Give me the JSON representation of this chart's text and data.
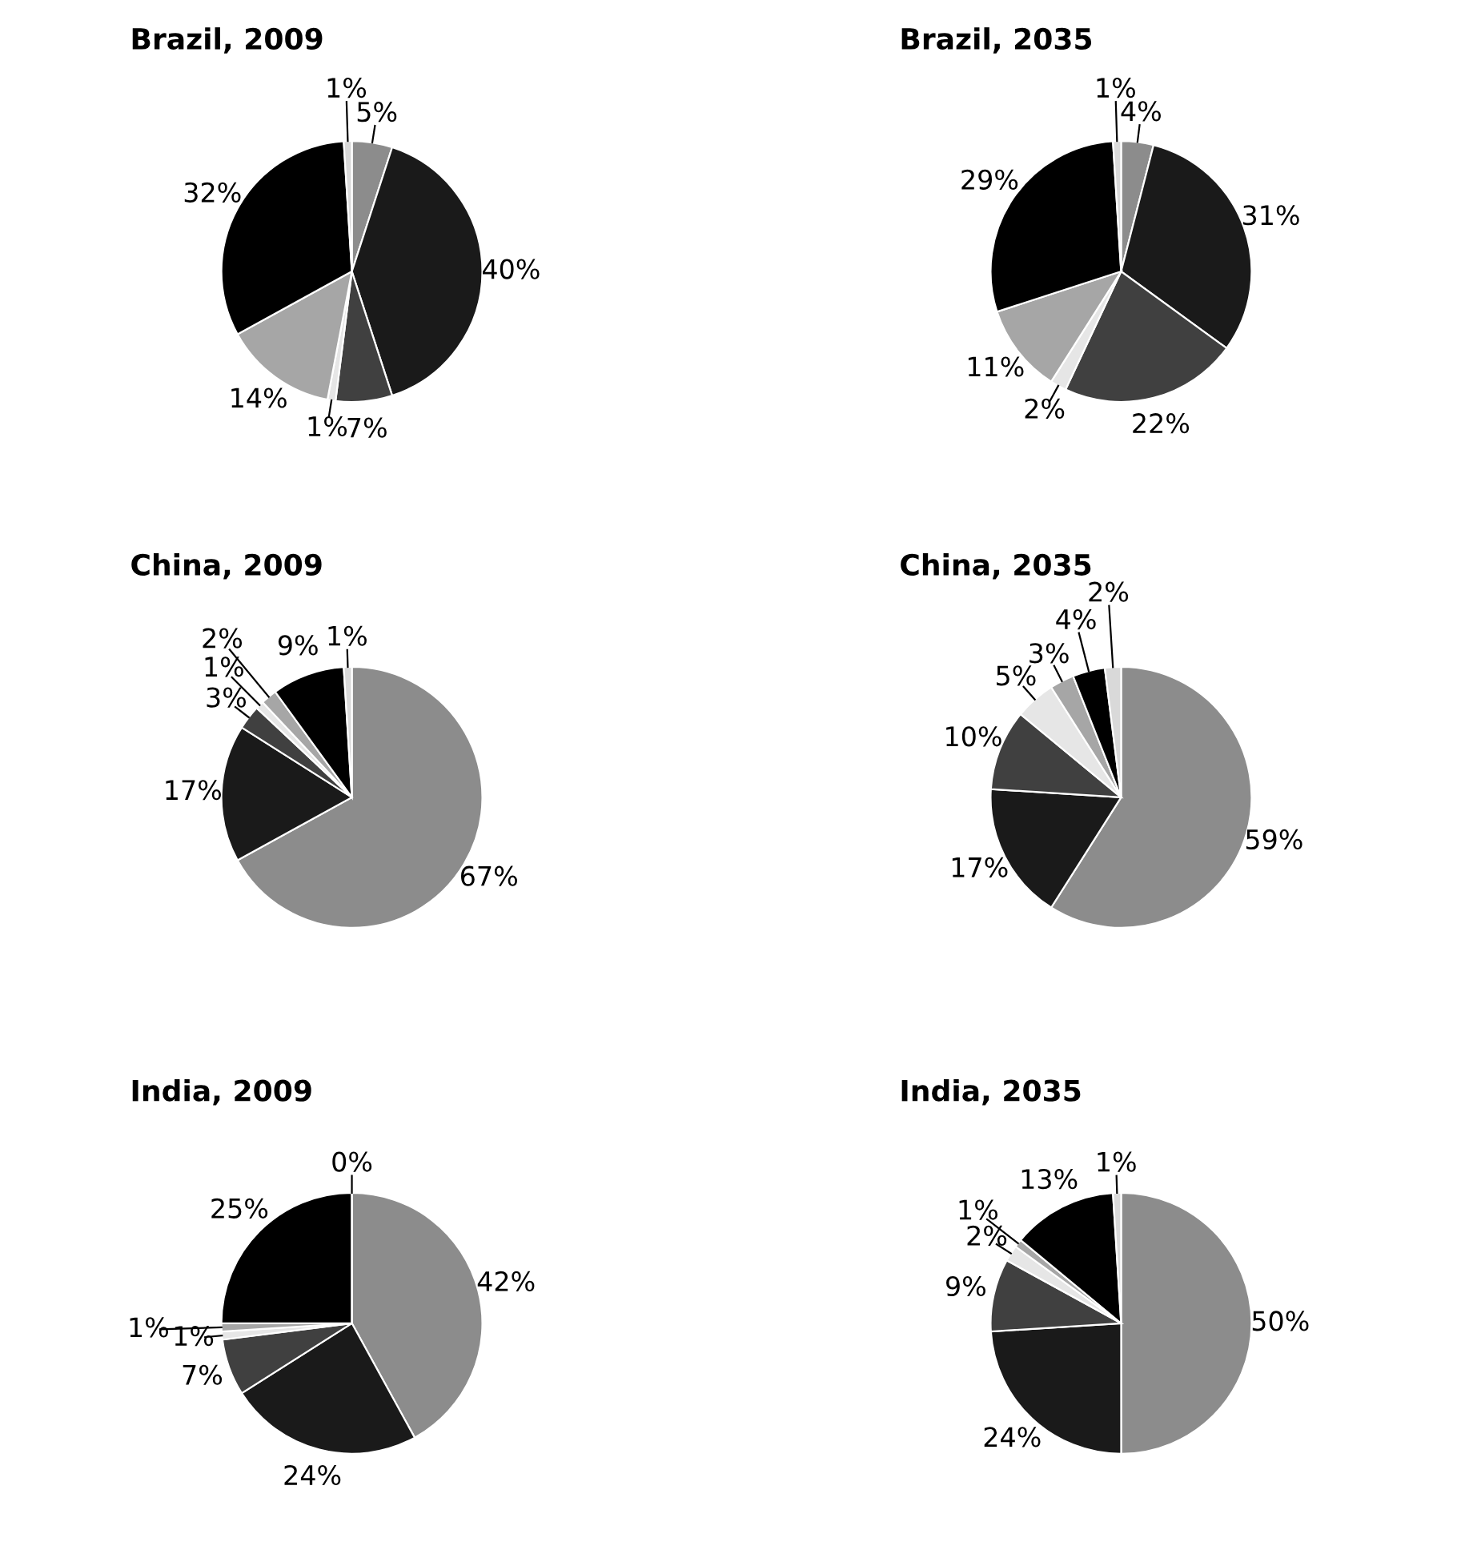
{
  "chart_data": [
    {
      "type": "pie",
      "title": "Brazil, 2009",
      "categories": [
        null,
        null,
        null,
        null,
        null,
        null,
        null
      ],
      "values": [
        5,
        40,
        7,
        1,
        14,
        32,
        1
      ],
      "value_labels": [
        "5%",
        "40%",
        "7%",
        "1%",
        "14%",
        "32%",
        "1%"
      ],
      "colors": [
        "#8c8c8c",
        "#1a1a1a",
        "#404040",
        "#e6e6e6",
        "#a6a6a6",
        "#000000",
        "#d9d9d9"
      ]
    },
    {
      "type": "pie",
      "title": "Brazil, 2035",
      "categories": [
        null,
        null,
        null,
        null,
        null,
        null,
        null
      ],
      "values": [
        4,
        31,
        22,
        2,
        11,
        29,
        1
      ],
      "value_labels": [
        "4%",
        "31%",
        "22%",
        "2%",
        "11%",
        "29%",
        "1%"
      ],
      "colors": [
        "#8c8c8c",
        "#1a1a1a",
        "#404040",
        "#e6e6e6",
        "#a6a6a6",
        "#000000",
        "#d9d9d9"
      ]
    },
    {
      "type": "pie",
      "title": "China, 2009",
      "categories": [
        null,
        null,
        null,
        null,
        null,
        null,
        null
      ],
      "values": [
        67,
        17,
        3,
        1,
        2,
        9,
        1
      ],
      "value_labels": [
        "67%",
        "17%",
        "3%",
        "1%",
        "2%",
        "9%",
        "1%"
      ],
      "colors": [
        "#8c8c8c",
        "#1a1a1a",
        "#404040",
        "#e6e6e6",
        "#a6a6a6",
        "#000000",
        "#d9d9d9"
      ]
    },
    {
      "type": "pie",
      "title": "China, 2035",
      "categories": [
        null,
        null,
        null,
        null,
        null,
        null,
        null
      ],
      "values": [
        59,
        17,
        10,
        5,
        3,
        4,
        2
      ],
      "value_labels": [
        "59%",
        "17%",
        "10%",
        "5%",
        "3%",
        "4%",
        "2%"
      ],
      "colors": [
        "#8c8c8c",
        "#1a1a1a",
        "#404040",
        "#e6e6e6",
        "#a6a6a6",
        "#000000",
        "#d9d9d9"
      ]
    },
    {
      "type": "pie",
      "title": "India, 2009",
      "categories": [
        null,
        null,
        null,
        null,
        null,
        null,
        null
      ],
      "values": [
        42,
        24,
        7,
        1,
        1,
        25,
        0
      ],
      "value_labels": [
        "42%",
        "24%",
        "7%",
        "1%",
        "1%",
        "25%",
        "0%"
      ],
      "colors": [
        "#8c8c8c",
        "#1a1a1a",
        "#404040",
        "#e6e6e6",
        "#a6a6a6",
        "#000000",
        "#d9d9d9"
      ]
    },
    {
      "type": "pie",
      "title": "India, 2035",
      "categories": [
        null,
        null,
        null,
        null,
        null,
        null,
        null
      ],
      "values": [
        50,
        24,
        9,
        2,
        1,
        13,
        1
      ],
      "value_labels": [
        "50%",
        "24%",
        "9%",
        "2%",
        "1%",
        "13%",
        "1%"
      ],
      "colors": [
        "#8c8c8c",
        "#1a1a1a",
        "#404040",
        "#e6e6e6",
        "#a6a6a6",
        "#000000",
        "#d9d9d9"
      ]
    }
  ]
}
